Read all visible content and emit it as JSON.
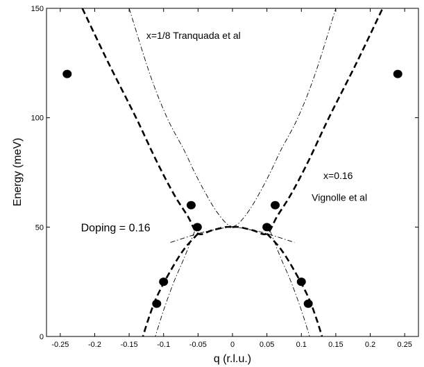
{
  "chart_data": {
    "type": "scatter",
    "title": "",
    "xlabel": "q (r.l.u.)",
    "ylabel": "Energy (meV)",
    "xlim": [
      -0.27,
      0.27
    ],
    "ylim": [
      0,
      150
    ],
    "grid": false,
    "x_ticks": [
      -0.25,
      -0.2,
      -0.15,
      -0.1,
      -0.05,
      0,
      0.05,
      0.1,
      0.15,
      0.2,
      0.25
    ],
    "x_tick_labels": [
      "-0.25",
      "-0.2",
      "-0.15",
      "-0.1",
      "-0.05",
      "0",
      "0.05",
      "0.1",
      "0.15",
      "0.2",
      "0.25"
    ],
    "y_ticks": [
      0,
      50,
      100,
      150
    ],
    "y_tick_labels": [
      "0",
      "50",
      "100",
      "150"
    ],
    "points": [
      {
        "x": -0.24,
        "y": 120
      },
      {
        "x": 0.24,
        "y": 120
      },
      {
        "x": -0.06,
        "y": 60
      },
      {
        "x": 0.062,
        "y": 60
      },
      {
        "x": -0.051,
        "y": 50
      },
      {
        "x": 0.05,
        "y": 50
      },
      {
        "x": -0.1,
        "y": 25
      },
      {
        "x": 0.1,
        "y": 25
      },
      {
        "x": -0.11,
        "y": 15
      },
      {
        "x": 0.11,
        "y": 15
      }
    ],
    "curves": [
      {
        "style": "dashed-thick",
        "points": [
          [
            -0.218,
            150
          ],
          [
            -0.18,
            125
          ],
          [
            -0.14,
            100
          ],
          [
            -0.11,
            80
          ],
          [
            -0.085,
            65
          ],
          [
            -0.065,
            55
          ],
          [
            -0.05,
            47
          ],
          [
            -0.03,
            48.5
          ],
          [
            -0.01,
            50
          ],
          [
            0,
            50
          ]
        ]
      },
      {
        "style": "dashed-thick",
        "points": [
          [
            0,
            50
          ],
          [
            0.01,
            50
          ],
          [
            0.03,
            48.5
          ],
          [
            0.05,
            47
          ],
          [
            0.065,
            55
          ],
          [
            0.085,
            65
          ],
          [
            0.11,
            80
          ],
          [
            0.14,
            100
          ],
          [
            0.18,
            125
          ],
          [
            0.218,
            150
          ]
        ]
      },
      {
        "style": "dashed-thick",
        "points": [
          [
            -0.05,
            47
          ],
          [
            -0.07,
            40
          ],
          [
            -0.09,
            30
          ],
          [
            -0.11,
            18
          ],
          [
            -0.122,
            8
          ],
          [
            -0.13,
            0
          ]
        ]
      },
      {
        "style": "dashed-thick",
        "points": [
          [
            0.05,
            47
          ],
          [
            0.07,
            40
          ],
          [
            0.09,
            30
          ],
          [
            0.11,
            18
          ],
          [
            0.122,
            8
          ],
          [
            0.13,
            0
          ]
        ]
      },
      {
        "style": "dashdot-thin",
        "points": [
          [
            -0.15,
            150
          ],
          [
            -0.12,
            120
          ],
          [
            -0.095,
            100
          ],
          [
            -0.07,
            85
          ],
          [
            -0.055,
            75
          ],
          [
            -0.04,
            66
          ],
          [
            -0.025,
            58
          ],
          [
            -0.01,
            52
          ],
          [
            0,
            50
          ]
        ]
      },
      {
        "style": "dashdot-thin",
        "points": [
          [
            0,
            50
          ],
          [
            0.01,
            52
          ],
          [
            0.025,
            58
          ],
          [
            0.04,
            66
          ],
          [
            0.055,
            75
          ],
          [
            0.07,
            85
          ],
          [
            0.095,
            100
          ],
          [
            0.12,
            120
          ],
          [
            0.15,
            150
          ]
        ]
      },
      {
        "style": "dashdot-thin",
        "points": [
          [
            -0.09,
            43
          ],
          [
            -0.05,
            47
          ],
          [
            -0.03,
            48.5
          ],
          [
            0,
            50
          ],
          [
            0.03,
            48.5
          ],
          [
            0.05,
            47
          ],
          [
            0.09,
            43
          ]
        ]
      },
      {
        "style": "dashdot-thin",
        "points": [
          [
            -0.055,
            48
          ],
          [
            -0.07,
            36
          ],
          [
            -0.085,
            25
          ],
          [
            -0.1,
            12
          ],
          [
            -0.112,
            0
          ]
        ]
      },
      {
        "style": "dashdot-thin",
        "points": [
          [
            0.055,
            48
          ],
          [
            0.07,
            36
          ],
          [
            0.085,
            25
          ],
          [
            0.1,
            12
          ],
          [
            0.112,
            0
          ]
        ]
      }
    ],
    "annotations": [
      {
        "id": "tranquada",
        "text": "x=1/8 Tranquada et al",
        "x": -0.125,
        "y": 136,
        "size": 14
      },
      {
        "id": "x016",
        "text": "x=0.16",
        "x": 0.132,
        "y": 72,
        "size": 14
      },
      {
        "id": "vignolle",
        "text": "Vignolle et al",
        "x": 0.115,
        "y": 62,
        "size": 14
      },
      {
        "id": "doping",
        "text": "Doping = 0.16",
        "x": -0.22,
        "y": 48,
        "size": 16
      }
    ]
  }
}
